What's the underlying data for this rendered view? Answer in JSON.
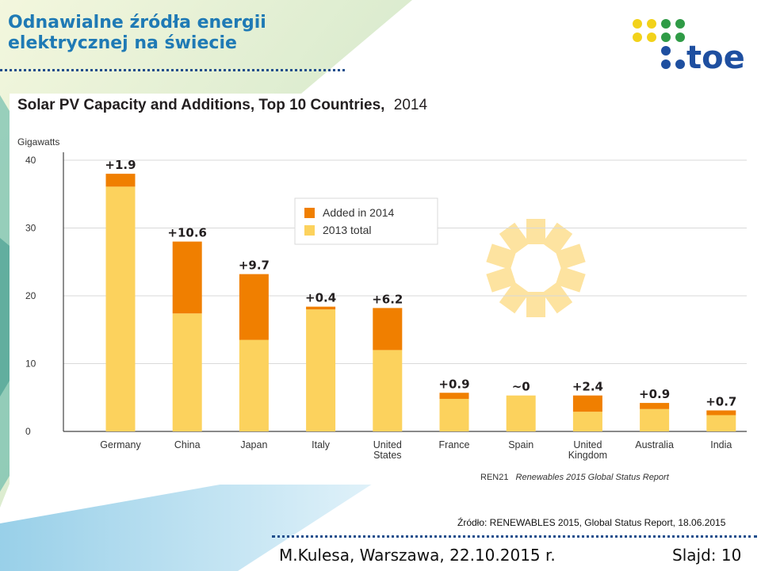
{
  "slide": {
    "title_line1": "Odnawialne źródła energii",
    "title_line2": "elektrycznej na świecie",
    "logo_text": "toe",
    "source": "Źródło: RENEWABLES 2015, Global Status Report, 18.06.2015",
    "author": "M.Kulesa, Warszawa, 22.10.2015 r.",
    "slide_number": "Slajd: 10",
    "colors": {
      "title": "#1f7ab5",
      "logo_blue": "#1e4fa0",
      "logo_green": "#2f9b46",
      "logo_yellow": "#f2d21a"
    }
  },
  "chart_data": {
    "type": "bar",
    "stacked": true,
    "title": "Solar PV Capacity and Additions, Top 10 Countries,",
    "title_year": "2014",
    "ylabel": "Gigawatts",
    "ylim": [
      0,
      40
    ],
    "yticks": [
      "40",
      "30",
      "20",
      "10",
      "0"
    ],
    "categories": [
      "Germany",
      "China",
      "Japan",
      "Italy",
      "United States",
      "France",
      "Spain",
      "United Kingdom",
      "Australia",
      "India"
    ],
    "category_lines": [
      [
        "Germany"
      ],
      [
        "China"
      ],
      [
        "Japan"
      ],
      [
        "Italy"
      ],
      [
        "United",
        "States"
      ],
      [
        "France"
      ],
      [
        "Spain"
      ],
      [
        "United",
        "Kingdom"
      ],
      [
        "Australia"
      ],
      [
        "India"
      ]
    ],
    "series": [
      {
        "name": "2013 total",
        "color": "#fcd25d",
        "values": [
          36.1,
          17.4,
          13.5,
          18.0,
          12.0,
          4.8,
          5.3,
          2.9,
          3.3,
          2.4
        ]
      },
      {
        "name": "Added in 2014",
        "color": "#f07f00",
        "values": [
          1.9,
          10.6,
          9.7,
          0.4,
          6.2,
          0.9,
          0,
          2.4,
          0.9,
          0.7
        ]
      }
    ],
    "annotations": [
      "+1.9",
      "+10.6",
      "+9.7",
      "+0.4",
      "+6.2",
      "+0.9",
      "~0",
      "+2.4",
      "+0.9",
      "+0.7"
    ],
    "legend_position": "upper-middle",
    "grid": true,
    "credit_prefix": "REN21",
    "credit_text": "Renewables 2015 Global Status Report"
  }
}
